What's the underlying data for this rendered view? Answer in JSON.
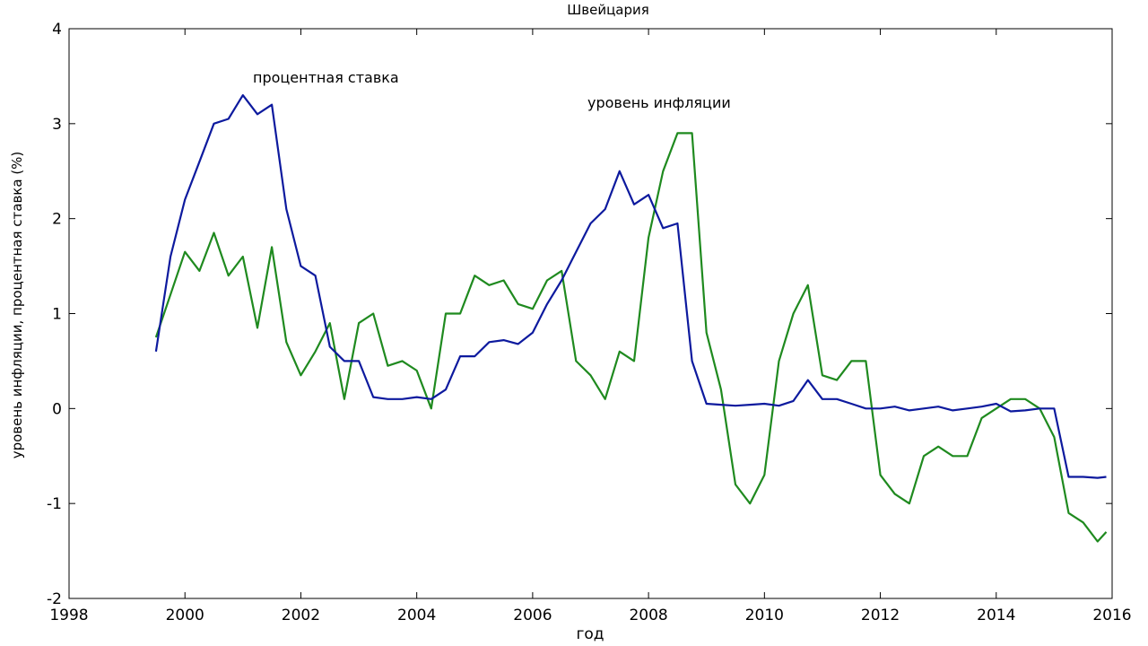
{
  "chart_data": {
    "type": "line",
    "title": "Швейцария",
    "x_label": "год",
    "y_label": "уровень инфляции, процентная ставка (%)",
    "annotations": [
      "процентная ставка",
      "уровень инфляции"
    ],
    "xlim": [
      1998,
      2016
    ],
    "xticks": [
      1998,
      2000,
      2002,
      2004,
      2006,
      2008,
      2010,
      2012,
      2014,
      2016
    ],
    "ylim": [
      -2,
      4
    ],
    "yticks": [
      -2,
      -1,
      0,
      1,
      2,
      3,
      4
    ],
    "grid": false,
    "x": [
      1999.5,
      1999.75,
      2000,
      2000.25,
      2000.5,
      2000.75,
      2001,
      2001.25,
      2001.5,
      2001.75,
      2002,
      2002.25,
      2002.5,
      2002.75,
      2003,
      2003.25,
      2003.5,
      2003.75,
      2004,
      2004.25,
      2004.5,
      2004.75,
      2005,
      2005.25,
      2005.5,
      2005.75,
      2006,
      2006.25,
      2006.5,
      2006.75,
      2007,
      2007.25,
      2007.5,
      2007.75,
      2008,
      2008.25,
      2008.5,
      2008.75,
      2009,
      2009.25,
      2009.5,
      2009.75,
      2010,
      2010.25,
      2010.5,
      2010.75,
      2011,
      2011.25,
      2011.5,
      2011.75,
      2012,
      2012.25,
      2012.5,
      2012.75,
      2013,
      2013.25,
      2013.5,
      2013.75,
      2014,
      2014.25,
      2014.5,
      2014.75,
      2015,
      2015.25,
      2015.5,
      2015.75,
      2015.9
    ],
    "series": [
      {
        "name": "процентная ставка",
        "color": "#0d1a9e",
        "values": [
          0.6,
          1.6,
          2.2,
          2.6,
          3.0,
          3.05,
          3.3,
          3.1,
          3.2,
          2.1,
          1.5,
          1.4,
          0.65,
          0.5,
          0.5,
          0.12,
          0.1,
          0.1,
          0.12,
          0.1,
          0.2,
          0.55,
          0.55,
          0.7,
          0.72,
          0.68,
          0.8,
          1.1,
          1.35,
          1.65,
          1.95,
          2.1,
          2.5,
          2.15,
          2.25,
          1.9,
          1.95,
          0.5,
          0.05,
          0.04,
          0.03,
          0.04,
          0.05,
          0.03,
          0.08,
          0.3,
          0.1,
          0.1,
          0.05,
          0.0,
          0.0,
          0.02,
          -0.02,
          0.0,
          0.02,
          -0.02,
          0.0,
          0.02,
          0.05,
          -0.03,
          -0.02,
          0.0,
          0.0,
          -0.72,
          -0.72,
          -0.73,
          -0.72
        ]
      },
      {
        "name": "уровень инфляции",
        "color": "#1f8a1f",
        "values": [
          0.75,
          1.2,
          1.65,
          1.45,
          1.85,
          1.4,
          1.6,
          0.85,
          1.7,
          0.7,
          0.35,
          0.6,
          0.9,
          0.1,
          0.9,
          1.0,
          0.45,
          0.5,
          0.4,
          0.0,
          1.0,
          1.0,
          1.4,
          1.3,
          1.35,
          1.1,
          1.05,
          1.35,
          1.45,
          0.5,
          0.35,
          0.1,
          0.6,
          0.5,
          1.8,
          2.5,
          2.9,
          2.9,
          0.8,
          0.2,
          -0.8,
          -1.0,
          -0.7,
          0.5,
          1.0,
          1.3,
          0.35,
          0.3,
          0.5,
          0.5,
          -0.7,
          -0.9,
          -1.0,
          -0.5,
          -0.4,
          -0.5,
          -0.5,
          -0.1,
          0.0,
          0.1,
          0.1,
          0.0,
          -0.3,
          -1.1,
          -1.2,
          -1.4,
          -1.3
        ]
      }
    ]
  }
}
